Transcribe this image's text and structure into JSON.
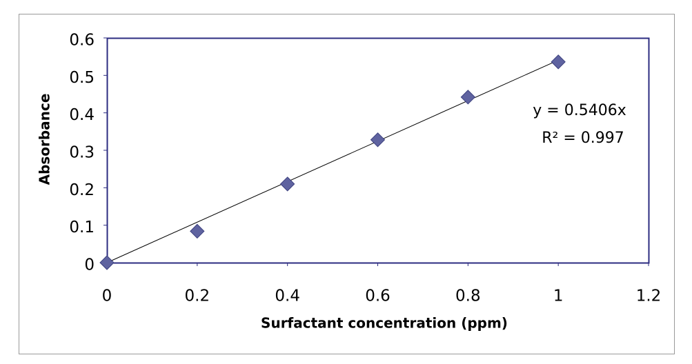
{
  "chart_data": {
    "type": "scatter",
    "x_label": "Surfactant concentration (ppm)",
    "y_label": "Absorbance",
    "series": [
      {
        "name": "Absorbance",
        "color": "#5f63a0",
        "x": [
          0,
          0.2,
          0.4,
          0.6,
          0.8,
          1
        ],
        "values": [
          0,
          0.084,
          0.21,
          0.328,
          0.442,
          0.536
        ]
      }
    ],
    "trendline": {
      "slope": 0.5406,
      "label": "y = 0.5406x"
    },
    "r_squared": {
      "value": 0.997,
      "label": "R² = 0.997"
    },
    "xlim": [
      0,
      1.2
    ],
    "xticks": [
      0,
      0.2,
      0.4,
      0.6,
      0.8,
      1,
      1.2
    ],
    "ylim": [
      0,
      0.6
    ],
    "yticks": [
      0,
      0.1,
      0.2,
      0.3,
      0.4,
      0.5,
      0.6
    ],
    "grid": false
  }
}
